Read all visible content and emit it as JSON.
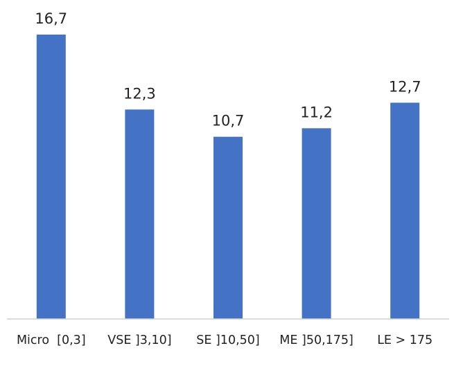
{
  "chart_data": {
    "type": "bar",
    "title": "",
    "xlabel": "",
    "ylabel": "",
    "categories": [
      "Micro  [0,3]",
      "VSE ]3,10]",
      "SE ]10,50]",
      "ME ]50,175]",
      "LE > 175"
    ],
    "values": [
      16.7,
      12.3,
      10.7,
      11.2,
      12.7
    ],
    "data_labels": [
      "16,7",
      "12,3",
      "10,7",
      "11,2",
      "12,7"
    ],
    "ylim": [
      0,
      16.7
    ],
    "grid": false,
    "legend": "none",
    "bar_color": "#4472c4"
  }
}
